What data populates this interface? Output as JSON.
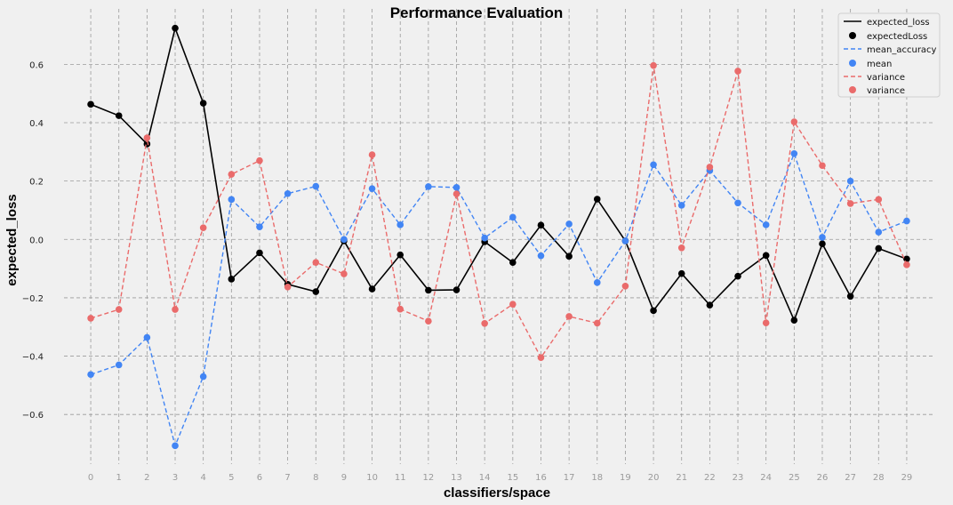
{
  "chart_data": {
    "type": "line",
    "title": "Performance Evaluation",
    "xlabel": "classifiers/space",
    "ylabel": "expected_loss",
    "x": [
      0,
      1,
      2,
      3,
      4,
      5,
      6,
      7,
      8,
      9,
      10,
      11,
      12,
      13,
      14,
      15,
      16,
      17,
      18,
      19,
      20,
      21,
      22,
      23,
      24,
      25,
      26,
      27,
      28,
      29
    ],
    "xlim": [
      -0.95,
      29.95
    ],
    "ylim": [
      -0.77,
      0.79
    ],
    "yticks": [
      -0.6,
      -0.4,
      -0.2,
      0.0,
      0.2,
      0.4,
      0.6
    ],
    "ytick_labels": [
      "−0.6",
      "−0.4",
      "−0.2",
      "0.0",
      "0.2",
      "0.4",
      "0.6"
    ],
    "grid": true,
    "legend_position": "top-right",
    "series": [
      {
        "line_name": "expected_loss",
        "marker_name": "expectedLoss",
        "color": "#000000",
        "dashed": false,
        "values": [
          0.463,
          0.424,
          0.327,
          0.724,
          0.467,
          -0.136,
          -0.046,
          -0.154,
          -0.179,
          -0.005,
          -0.17,
          -0.053,
          -0.174,
          -0.173,
          -0.008,
          -0.079,
          0.049,
          -0.058,
          0.138,
          -0.005,
          -0.244,
          -0.117,
          -0.225,
          -0.126,
          -0.055,
          -0.277,
          -0.015,
          -0.195,
          -0.031,
          -0.067
        ]
      },
      {
        "line_name": "mean_accuracy",
        "marker_name": "mean",
        "color": "#4285f4",
        "dashed": true,
        "values": [
          -0.463,
          -0.43,
          -0.336,
          -0.707,
          -0.47,
          0.137,
          0.043,
          0.157,
          0.182,
          0.0,
          0.174,
          0.05,
          0.181,
          0.178,
          0.005,
          0.076,
          -0.056,
          0.053,
          -0.148,
          -0.005,
          0.256,
          0.117,
          0.236,
          0.125,
          0.05,
          0.294,
          0.007,
          0.2,
          0.025,
          0.063
        ]
      },
      {
        "line_name": "variance",
        "marker_name": "variance",
        "color": "#ea6b6b",
        "dashed": true,
        "values": [
          -0.27,
          -0.24,
          0.348,
          -0.24,
          0.04,
          0.223,
          0.27,
          -0.163,
          -0.079,
          -0.118,
          0.29,
          -0.239,
          -0.28,
          0.156,
          -0.288,
          -0.222,
          -0.405,
          -0.264,
          -0.287,
          -0.16,
          0.596,
          -0.029,
          0.248,
          0.577,
          -0.286,
          0.403,
          0.253,
          0.123,
          0.137,
          -0.087
        ]
      }
    ]
  }
}
